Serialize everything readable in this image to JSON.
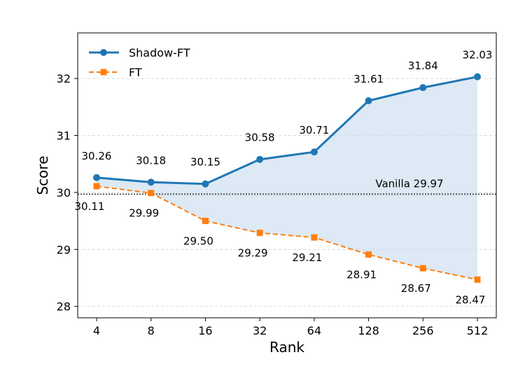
{
  "chart_data": {
    "type": "line",
    "categories": [
      "4",
      "8",
      "16",
      "32",
      "64",
      "128",
      "256",
      "512"
    ],
    "xlabel": "Rank",
    "ylabel": "Score",
    "ylim": [
      27.8,
      32.8
    ],
    "yticks": [
      28,
      29,
      30,
      31,
      32
    ],
    "grid": "horizontal, dashed",
    "legend_position": "top-left",
    "series": [
      {
        "name": "Shadow-FT",
        "values": [
          30.26,
          30.18,
          30.15,
          30.58,
          30.71,
          31.61,
          31.84,
          32.03
        ],
        "labels": [
          "30.26",
          "30.18",
          "30.15",
          "30.58",
          "30.71",
          "31.61",
          "31.84",
          "32.03"
        ],
        "color": "#1f77b4",
        "style": "solid",
        "marker": "circle"
      },
      {
        "name": "FT",
        "values": [
          30.11,
          29.99,
          29.5,
          29.29,
          29.21,
          28.91,
          28.67,
          28.47
        ],
        "labels": [
          "30.11",
          "29.99",
          "29.50",
          "29.29",
          "29.21",
          "28.91",
          "28.67",
          "28.47"
        ],
        "color": "#ff7f0e",
        "style": "dashed",
        "marker": "square"
      }
    ],
    "reference_line": {
      "value": 29.97,
      "label": "Vanilla 29.97",
      "style": "dotted",
      "color": "#555555"
    },
    "fill_between": {
      "color": "#c6dbef"
    }
  }
}
